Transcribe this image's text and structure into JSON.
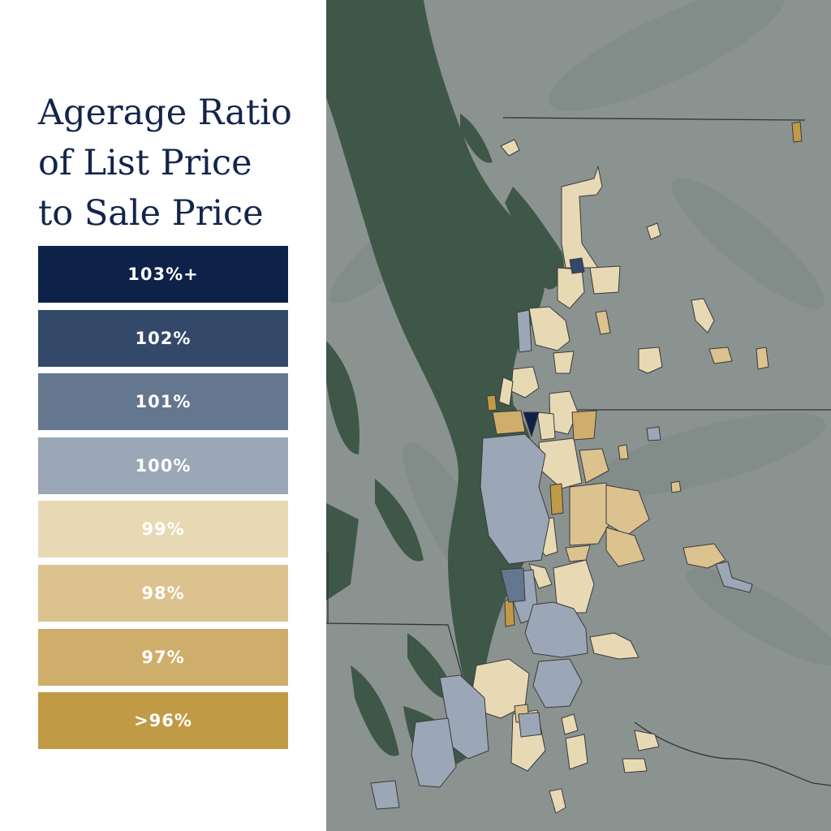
{
  "title": {
    "line1": "Agerage Ratio",
    "line2": "of List Price",
    "line3": "to Sale Price"
  },
  "legend": [
    {
      "label": "103%+",
      "color": "#0e2148"
    },
    {
      "label": "102%",
      "color": "#34496a"
    },
    {
      "label": "101%",
      "color": "#65778f"
    },
    {
      "label": "100%",
      "color": "#9ba7b6"
    },
    {
      "label": "99%",
      "color": "#e8d9b5"
    },
    {
      "label": "98%",
      "color": "#dbc28e"
    },
    {
      "label": "97%",
      "color": "#cfae6c"
    },
    {
      "label": ">96%",
      "color": "#c19a46"
    }
  ],
  "colors": {
    "water": "#3e5749",
    "land": "#8b9391",
    "region_outline": "#3a3a3a",
    "boundary_line": "#2f3436"
  }
}
